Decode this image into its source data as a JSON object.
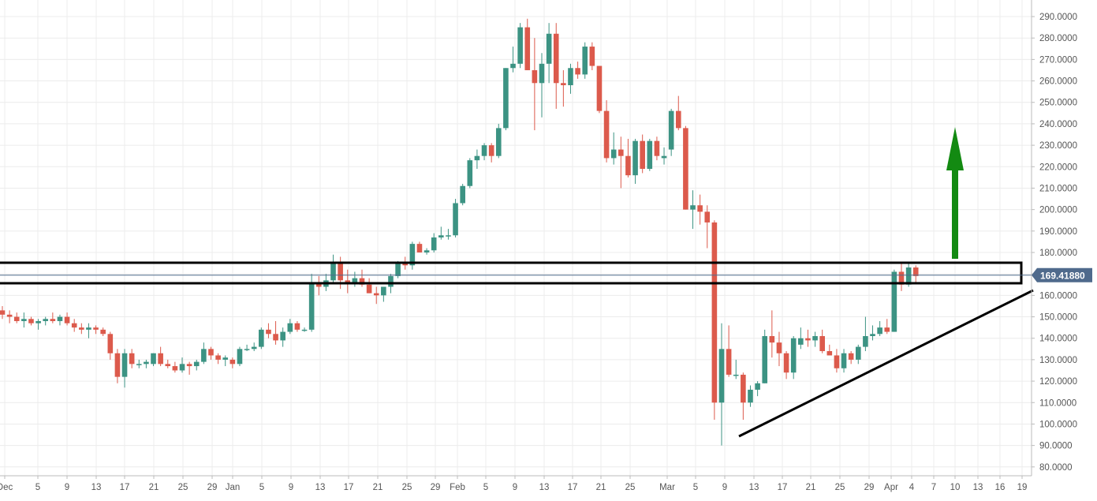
{
  "chart_data": {
    "type": "candlestick",
    "grid": true,
    "y_axis_position": "right",
    "ylim": [
      80,
      292
    ],
    "y_ticks": [
      "80.0000",
      "90.0000",
      "100.0000",
      "110.0000",
      "120.0000",
      "130.0000",
      "140.0000",
      "150.0000",
      "160.0000",
      "170.0000",
      "180.0000",
      "190.0000",
      "200.0000",
      "210.0000",
      "220.0000",
      "230.0000",
      "240.0000",
      "250.0000",
      "260.0000",
      "270.0000",
      "280.0000",
      "290.0000"
    ],
    "x_labels": [
      "Dec",
      "5",
      "9",
      "13",
      "17",
      "21",
      "25",
      "29",
      "Jan",
      "5",
      "9",
      "13",
      "17",
      "21",
      "25",
      "29",
      "Feb",
      "5",
      "9",
      "13",
      "17",
      "21",
      "25",
      "Mar",
      "5",
      "9",
      "13",
      "17",
      "21",
      "25",
      "29",
      "Apr",
      "4",
      "7",
      "10",
      "13",
      "16",
      "19"
    ],
    "last_price": "169.41880",
    "colors": {
      "up": "#3c9383",
      "down": "#dc5a4c",
      "grid": "#ececec",
      "axis_text": "#555555",
      "annotation": "#000000",
      "arrow": "#138a12",
      "price_line": "#4f6a8c",
      "price_label_bg": "#4f6a8c"
    },
    "candles": [
      {
        "o": 153,
        "h": 155,
        "l": 149,
        "c": 151
      },
      {
        "o": 151,
        "h": 153,
        "l": 147,
        "c": 150
      },
      {
        "o": 150,
        "h": 152,
        "l": 147,
        "c": 148
      },
      {
        "o": 148,
        "h": 152,
        "l": 145,
        "c": 149
      },
      {
        "o": 149,
        "h": 150,
        "l": 146,
        "c": 147
      },
      {
        "o": 147,
        "h": 149,
        "l": 144,
        "c": 148
      },
      {
        "o": 148,
        "h": 150,
        "l": 146,
        "c": 149
      },
      {
        "o": 149,
        "h": 152,
        "l": 147,
        "c": 148
      },
      {
        "o": 148,
        "h": 151,
        "l": 146,
        "c": 150
      },
      {
        "o": 150,
        "h": 152,
        "l": 146,
        "c": 147
      },
      {
        "o": 147,
        "h": 149,
        "l": 143,
        "c": 145
      },
      {
        "o": 145,
        "h": 147,
        "l": 142,
        "c": 144
      },
      {
        "o": 144,
        "h": 147,
        "l": 140,
        "c": 145
      },
      {
        "o": 145,
        "h": 146,
        "l": 142,
        "c": 144
      },
      {
        "o": 144,
        "h": 145,
        "l": 141,
        "c": 142
      },
      {
        "o": 142,
        "h": 143,
        "l": 130,
        "c": 133
      },
      {
        "o": 133,
        "h": 135,
        "l": 119,
        "c": 122
      },
      {
        "o": 122,
        "h": 135,
        "l": 117,
        "c": 133
      },
      {
        "o": 133,
        "h": 135,
        "l": 126,
        "c": 128
      },
      {
        "o": 128,
        "h": 130,
        "l": 126,
        "c": 128
      },
      {
        "o": 128,
        "h": 130,
        "l": 126,
        "c": 129
      },
      {
        "o": 128,
        "h": 133,
        "l": 127,
        "c": 133
      },
      {
        "o": 133,
        "h": 136,
        "l": 127,
        "c": 128
      },
      {
        "o": 128,
        "h": 130,
        "l": 126,
        "c": 127
      },
      {
        "o": 127,
        "h": 129,
        "l": 124,
        "c": 125
      },
      {
        "o": 125,
        "h": 131,
        "l": 124,
        "c": 128
      },
      {
        "o": 128,
        "h": 129,
        "l": 123,
        "c": 127
      },
      {
        "o": 127,
        "h": 130,
        "l": 125,
        "c": 129
      },
      {
        "o": 129,
        "h": 138,
        "l": 128,
        "c": 135
      },
      {
        "o": 135,
        "h": 136,
        "l": 130,
        "c": 132
      },
      {
        "o": 132,
        "h": 133,
        "l": 128,
        "c": 130
      },
      {
        "o": 130,
        "h": 132,
        "l": 127,
        "c": 131
      },
      {
        "o": 130,
        "h": 131,
        "l": 126,
        "c": 128
      },
      {
        "o": 128,
        "h": 136,
        "l": 127,
        "c": 135
      },
      {
        "o": 135,
        "h": 137,
        "l": 134,
        "c": 135
      },
      {
        "o": 135,
        "h": 138,
        "l": 134,
        "c": 136
      },
      {
        "o": 136,
        "h": 145,
        "l": 135,
        "c": 144
      },
      {
        "o": 144,
        "h": 147,
        "l": 140,
        "c": 142
      },
      {
        "o": 142,
        "h": 148,
        "l": 137,
        "c": 139
      },
      {
        "o": 139,
        "h": 145,
        "l": 136,
        "c": 143
      },
      {
        "o": 143,
        "h": 149,
        "l": 142,
        "c": 147
      },
      {
        "o": 147,
        "h": 148,
        "l": 143,
        "c": 144
      },
      {
        "o": 144,
        "h": 145,
        "l": 143,
        "c": 144
      },
      {
        "o": 144,
        "h": 170,
        "l": 143,
        "c": 166
      },
      {
        "o": 166,
        "h": 169,
        "l": 160,
        "c": 164
      },
      {
        "o": 164,
        "h": 170,
        "l": 162,
        "c": 167
      },
      {
        "o": 167,
        "h": 179,
        "l": 166,
        "c": 175
      },
      {
        "o": 175,
        "h": 178,
        "l": 163,
        "c": 167
      },
      {
        "o": 167,
        "h": 172,
        "l": 161,
        "c": 166
      },
      {
        "o": 166,
        "h": 171,
        "l": 164,
        "c": 168
      },
      {
        "o": 168,
        "h": 172,
        "l": 164,
        "c": 165
      },
      {
        "o": 165,
        "h": 168,
        "l": 161,
        "c": 161
      },
      {
        "o": 161,
        "h": 164,
        "l": 156,
        "c": 160
      },
      {
        "o": 160,
        "h": 163,
        "l": 157,
        "c": 164
      },
      {
        "o": 164,
        "h": 170,
        "l": 161,
        "c": 169
      },
      {
        "o": 169,
        "h": 176,
        "l": 168,
        "c": 175
      },
      {
        "o": 175,
        "h": 178,
        "l": 172,
        "c": 174
      },
      {
        "o": 174,
        "h": 185,
        "l": 172,
        "c": 184
      },
      {
        "o": 184,
        "h": 185,
        "l": 180,
        "c": 180
      },
      {
        "o": 180,
        "h": 182,
        "l": 179,
        "c": 181
      },
      {
        "o": 181,
        "h": 189,
        "l": 180,
        "c": 187
      },
      {
        "o": 187,
        "h": 192,
        "l": 186,
        "c": 188
      },
      {
        "o": 188,
        "h": 191,
        "l": 186,
        "c": 188
      },
      {
        "o": 188,
        "h": 205,
        "l": 187,
        "c": 203
      },
      {
        "o": 203,
        "h": 212,
        "l": 202,
        "c": 211
      },
      {
        "o": 211,
        "h": 224,
        "l": 210,
        "c": 223
      },
      {
        "o": 223,
        "h": 228,
        "l": 219,
        "c": 225
      },
      {
        "o": 225,
        "h": 231,
        "l": 223,
        "c": 230
      },
      {
        "o": 230,
        "h": 231,
        "l": 222,
        "c": 225
      },
      {
        "o": 225,
        "h": 240,
        "l": 224,
        "c": 238
      },
      {
        "o": 238,
        "h": 266,
        "l": 237,
        "c": 266
      },
      {
        "o": 266,
        "h": 276,
        "l": 264,
        "c": 268
      },
      {
        "o": 268,
        "h": 287,
        "l": 266,
        "c": 285
      },
      {
        "o": 285,
        "h": 289,
        "l": 265,
        "c": 265
      },
      {
        "o": 265,
        "h": 280,
        "l": 237,
        "c": 259
      },
      {
        "o": 259,
        "h": 273,
        "l": 243,
        "c": 268
      },
      {
        "o": 268,
        "h": 287,
        "l": 259,
        "c": 282
      },
      {
        "o": 282,
        "h": 287,
        "l": 247,
        "c": 259
      },
      {
        "o": 259,
        "h": 265,
        "l": 248,
        "c": 258
      },
      {
        "o": 258,
        "h": 268,
        "l": 254,
        "c": 266
      },
      {
        "o": 266,
        "h": 269,
        "l": 261,
        "c": 263
      },
      {
        "o": 263,
        "h": 278,
        "l": 261,
        "c": 276
      },
      {
        "o": 276,
        "h": 278,
        "l": 265,
        "c": 267
      },
      {
        "o": 267,
        "h": 267,
        "l": 245,
        "c": 246
      },
      {
        "o": 246,
        "h": 251,
        "l": 222,
        "c": 224
      },
      {
        "o": 224,
        "h": 236,
        "l": 221,
        "c": 228
      },
      {
        "o": 228,
        "h": 234,
        "l": 210,
        "c": 225
      },
      {
        "o": 225,
        "h": 233,
        "l": 215,
        "c": 216
      },
      {
        "o": 216,
        "h": 233,
        "l": 212,
        "c": 232
      },
      {
        "o": 232,
        "h": 235,
        "l": 217,
        "c": 219
      },
      {
        "o": 219,
        "h": 233,
        "l": 218,
        "c": 232
      },
      {
        "o": 232,
        "h": 234,
        "l": 223,
        "c": 225
      },
      {
        "o": 224,
        "h": 229,
        "l": 221,
        "c": 225
      },
      {
        "o": 228,
        "h": 247,
        "l": 225,
        "c": 246
      },
      {
        "o": 246,
        "h": 253,
        "l": 237,
        "c": 238
      },
      {
        "o": 238,
        "h": 239,
        "l": 200,
        "c": 200
      },
      {
        "o": 200,
        "h": 209,
        "l": 191,
        "c": 202
      },
      {
        "o": 202,
        "h": 207,
        "l": 193,
        "c": 199
      },
      {
        "o": 199,
        "h": 202,
        "l": 182,
        "c": 194
      },
      {
        "o": 194,
        "h": 195,
        "l": 102,
        "c": 110
      },
      {
        "o": 110,
        "h": 147,
        "l": 90,
        "c": 135
      },
      {
        "o": 135,
        "h": 146,
        "l": 122,
        "c": 123
      },
      {
        "o": 123,
        "h": 130,
        "l": 121,
        "c": 123
      },
      {
        "o": 123,
        "h": 124,
        "l": 102,
        "c": 110
      },
      {
        "o": 110,
        "h": 118,
        "l": 108,
        "c": 116
      },
      {
        "o": 116,
        "h": 120,
        "l": 113,
        "c": 119
      },
      {
        "o": 119,
        "h": 144,
        "l": 119,
        "c": 141
      },
      {
        "o": 141,
        "h": 153,
        "l": 131,
        "c": 138
      },
      {
        "o": 138,
        "h": 143,
        "l": 127,
        "c": 133
      },
      {
        "o": 133,
        "h": 134,
        "l": 121,
        "c": 124
      },
      {
        "o": 124,
        "h": 141,
        "l": 121,
        "c": 140
      },
      {
        "o": 137,
        "h": 145,
        "l": 135,
        "c": 140
      },
      {
        "o": 140,
        "h": 144,
        "l": 136,
        "c": 139
      },
      {
        "o": 139,
        "h": 143,
        "l": 136,
        "c": 141
      },
      {
        "o": 141,
        "h": 144,
        "l": 133,
        "c": 134
      },
      {
        "o": 134,
        "h": 137,
        "l": 132,
        "c": 132
      },
      {
        "o": 132,
        "h": 135,
        "l": 124,
        "c": 126
      },
      {
        "o": 126,
        "h": 135,
        "l": 124,
        "c": 133
      },
      {
        "o": 133,
        "h": 134,
        "l": 128,
        "c": 130
      },
      {
        "o": 130,
        "h": 137,
        "l": 128,
        "c": 136
      },
      {
        "o": 136,
        "h": 150,
        "l": 134,
        "c": 141
      },
      {
        "o": 141,
        "h": 146,
        "l": 139,
        "c": 142
      },
      {
        "o": 142,
        "h": 148,
        "l": 141,
        "c": 145
      },
      {
        "o": 145,
        "h": 149,
        "l": 142,
        "c": 143
      },
      {
        "o": 143,
        "h": 172,
        "l": 143,
        "c": 171
      },
      {
        "o": 171,
        "h": 175,
        "l": 162,
        "c": 165
      },
      {
        "o": 165,
        "h": 175,
        "l": 164,
        "c": 173
      },
      {
        "o": 173,
        "h": 174,
        "l": 166,
        "c": 169
      }
    ]
  }
}
